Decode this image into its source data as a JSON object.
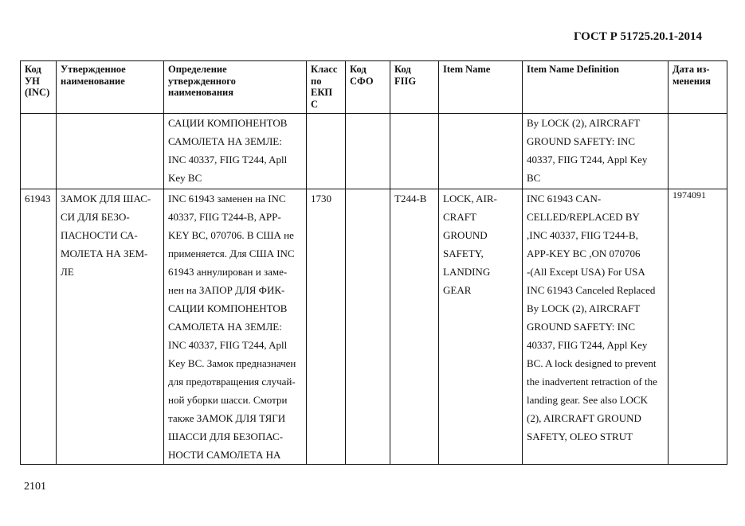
{
  "document_id": "ГОСТ Р 51725.20.1-2014",
  "page_number": "2101",
  "table": {
    "headers": [
      [
        "Код",
        "УН",
        "(INC)"
      ],
      [
        "Утвержденное",
        "наименование"
      ],
      [
        "Определение",
        "утвержденного",
        "наименования"
      ],
      [
        "Класс",
        "по",
        "ЕКП",
        "С"
      ],
      [
        "Код",
        "СФО"
      ],
      [
        "Код",
        "FIIG"
      ],
      [
        "Item Name"
      ],
      [
        "Item Name Definition"
      ],
      [
        "Дата из-",
        "менения"
      ]
    ],
    "rows": [
      [
        [],
        [],
        [
          "САЦИИ КОМПОНЕНТОВ",
          "САМОЛЕТА НА ЗЕМЛЕ:",
          "INC 40337, FIIG T244, Apll",
          "Key BC"
        ],
        [],
        [],
        [],
        [],
        [
          "By LOCK (2), AIRCRAFT",
          "GROUND SAFETY: INC",
          "40337, FIIG T244, Appl Key",
          "BC"
        ],
        []
      ],
      [
        [
          "61943"
        ],
        [
          "ЗАМОК ДЛЯ ШАС-",
          "СИ ДЛЯ БЕЗО-",
          "ПАСНОСТИ СА-",
          "МОЛЕТА НА ЗЕМ-",
          "ЛЕ"
        ],
        [
          "INC 61943 заменен на INC",
          "40337, FIIG T244-B, APP-",
          "KEY BC, 070706. В США не",
          "применяется. Для США INC",
          "61943 аннулирован и заме-",
          "нен на ЗАПОР ДЛЯ ФИК-",
          "САЦИИ КОМПОНЕНТОВ",
          "САМОЛЕТА НА ЗЕМЛЕ:",
          "INC 40337, FIIG T244, Apll",
          "Key BC. Замок предназначен",
          "для предотвращения случай-",
          "ной уборки шасси. Смотри",
          "также ЗАМОК ДЛЯ ТЯГИ",
          "ШАССИ ДЛЯ БЕЗОПАС-",
          "НОСТИ САМОЛЕТА НА"
        ],
        [
          "1730"
        ],
        [],
        [
          "T244-B"
        ],
        [
          "LOCK, AIR-",
          "CRAFT",
          "GROUND",
          "SAFETY,",
          "LANDING",
          "GEAR"
        ],
        [
          "INC 61943 CAN-",
          "CELLED/REPLACED BY",
          ",INC 40337, FIIG T244-B,",
          "APP-KEY BC ,ON 070706",
          "-(All Except USA) For USA",
          "INC 61943 Canceled Replaced",
          "By LOCK (2), AIRCRAFT",
          "GROUND SAFETY: INC",
          "40337, FIIG T244, Appl Key",
          "BC. A lock designed to prevent",
          "the inadvertent retraction of the",
          "landing gear. See also LOCK",
          "(2), AIRCRAFT GROUND",
          "SAFETY, OLEO STRUT"
        ],
        [
          "1974091"
        ]
      ]
    ]
  }
}
